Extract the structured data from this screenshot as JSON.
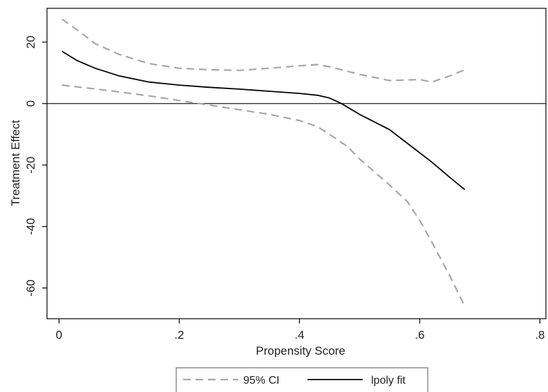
{
  "chart_data": {
    "type": "line",
    "title": "",
    "xlabel": "Propensity Score",
    "ylabel": "Treatment Effect",
    "xlim": [
      -0.02,
      0.81
    ],
    "ylim": [
      -70,
      31
    ],
    "x_ticks": [
      0,
      0.2,
      0.4,
      0.6,
      0.8
    ],
    "x_tick_labels": [
      "0",
      ".2",
      ".4",
      ".6",
      ".8"
    ],
    "y_ticks": [
      20,
      0,
      -20,
      -40,
      -60
    ],
    "y_tick_labels": [
      "20",
      "0",
      "-20",
      "-40",
      "-60"
    ],
    "reference_line_y": 0,
    "grid": false,
    "legend_position": "bottom",
    "series": [
      {
        "name": "lpoly fit",
        "style": "solid",
        "color": "#000000",
        "x": [
          0.005,
          0.03,
          0.06,
          0.1,
          0.15,
          0.2,
          0.25,
          0.3,
          0.35,
          0.4,
          0.43,
          0.45,
          0.47,
          0.5,
          0.55,
          0.58,
          0.62,
          0.65,
          0.675
        ],
        "y": [
          17,
          14,
          11.5,
          9,
          7,
          6,
          5.3,
          4.7,
          4,
          3.3,
          2.7,
          1.8,
          0,
          -3.5,
          -8.5,
          -13,
          -19,
          -24,
          -28
        ]
      },
      {
        "name": "95% CI",
        "style": "dashed",
        "color": "#a6a6a6",
        "x": [
          0.005,
          0.03,
          0.06,
          0.1,
          0.15,
          0.2,
          0.25,
          0.3,
          0.35,
          0.4,
          0.43,
          0.45,
          0.5,
          0.55,
          0.6,
          0.62,
          0.65,
          0.675
        ],
        "y": [
          27.5,
          24,
          19.5,
          16,
          13,
          11.5,
          11,
          10.8,
          11.5,
          12.3,
          12.7,
          12,
          9.5,
          7.5,
          7.8,
          7,
          9,
          11
        ]
      },
      {
        "name": "95% CI",
        "style": "dashed",
        "color": "#a6a6a6",
        "x": [
          0.005,
          0.05,
          0.1,
          0.15,
          0.2,
          0.25,
          0.3,
          0.35,
          0.4,
          0.43,
          0.45,
          0.48,
          0.5,
          0.55,
          0.58,
          0.6,
          0.62,
          0.65,
          0.675
        ],
        "y": [
          6,
          5,
          3.8,
          2.5,
          1,
          -0.5,
          -2,
          -3.5,
          -5.5,
          -7.5,
          -10,
          -14,
          -18,
          -26.5,
          -32,
          -38,
          -45,
          -56,
          -66
        ]
      }
    ],
    "legend": [
      {
        "label": "95% CI",
        "style": "dashed",
        "color": "#a6a6a6"
      },
      {
        "label": "lpoly fit",
        "style": "solid",
        "color": "#000000"
      }
    ]
  }
}
